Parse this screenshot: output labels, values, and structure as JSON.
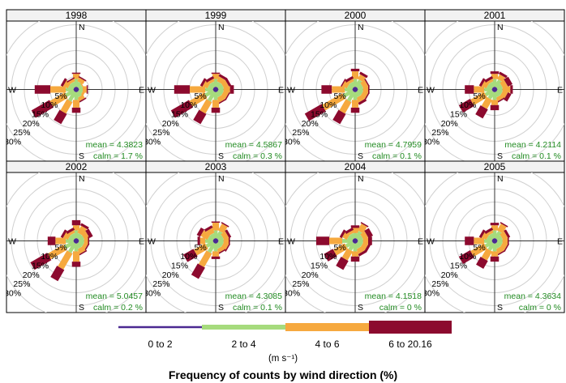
{
  "chart_data": {
    "type": "windrose",
    "title": "Frequency of counts by wind direction (%)",
    "units_label": "(m s⁻¹)",
    "directions_deg": [
      0,
      30,
      60,
      90,
      120,
      150,
      180,
      210,
      240,
      270,
      300,
      330
    ],
    "compass_labels": {
      "n": "N",
      "e": "E",
      "s": "S",
      "w": "W"
    },
    "ring_labels": [
      "5%",
      "10%",
      "15%",
      "20%",
      "25%",
      "30%"
    ],
    "ring_values": [
      5,
      10,
      15,
      20,
      25,
      30
    ],
    "bins": [
      {
        "label": "0 to 2",
        "color": "#4B2991"
      },
      {
        "label": "2 to 4",
        "color": "#A6DB7D"
      },
      {
        "label": "4 to 6",
        "color": "#F6A93F"
      },
      {
        "label": "6 to 20.16",
        "color": "#8C0A2E"
      }
    ],
    "panels": [
      {
        "year": "1998",
        "mean_label": "mean = 4.3823",
        "calm_label": "calm = 1.7 %",
        "cum": [
          [
            1,
            4,
            6,
            6.5
          ],
          [
            1,
            3,
            4.5,
            5
          ],
          [
            1,
            2.5,
            3,
            3
          ],
          [
            1,
            2.5,
            4,
            4.5
          ],
          [
            1,
            2.5,
            3.5,
            3.5
          ],
          [
            1,
            3,
            4.5,
            5
          ],
          [
            1,
            4,
            7,
            9
          ],
          [
            1,
            5,
            10,
            14.5
          ],
          [
            1,
            4.5,
            11,
            19
          ],
          [
            1,
            4,
            10,
            16
          ],
          [
            1,
            3,
            5,
            6
          ],
          [
            1,
            3,
            4,
            4.5
          ]
        ]
      },
      {
        "year": "1999",
        "mean_label": "mean = 4.5867",
        "calm_label": "calm = 0.3 %",
        "cum": [
          [
            1,
            4,
            6,
            6.5
          ],
          [
            1,
            3,
            5,
            6
          ],
          [
            1,
            3,
            5,
            6
          ],
          [
            1,
            3,
            5.5,
            7
          ],
          [
            1,
            3,
            5,
            5.5
          ],
          [
            1,
            3,
            5,
            5.5
          ],
          [
            1,
            4,
            7,
            9
          ],
          [
            1,
            5,
            10,
            14.5
          ],
          [
            1,
            4.5,
            11,
            19
          ],
          [
            1,
            4,
            10,
            16
          ],
          [
            1,
            3,
            5,
            6
          ],
          [
            1,
            3,
            4,
            5
          ]
        ]
      },
      {
        "year": "2000",
        "mean_label": "mean = 4.7959",
        "calm_label": "calm = 0.1 %",
        "cum": [
          [
            1,
            4,
            7,
            8
          ],
          [
            1,
            4,
            6,
            7
          ],
          [
            1,
            3,
            5,
            5.5
          ],
          [
            1,
            3,
            5,
            5.5
          ],
          [
            1,
            3,
            5,
            5.5
          ],
          [
            1,
            3,
            5,
            6
          ],
          [
            1,
            4,
            7,
            9
          ],
          [
            1,
            5,
            10,
            14.5
          ],
          [
            1,
            5,
            14,
            21.5
          ],
          [
            1,
            4,
            9,
            13
          ],
          [
            1,
            3,
            5,
            5.5
          ],
          [
            1,
            3,
            4,
            5
          ]
        ]
      },
      {
        "year": "2001",
        "mean_label": "mean = 4.2114",
        "calm_label": "calm = 0.1 %",
        "cum": [
          [
            1,
            4,
            6,
            7
          ],
          [
            1,
            4,
            6,
            7
          ],
          [
            1,
            3,
            5,
            7
          ],
          [
            1,
            3,
            6,
            7
          ],
          [
            1,
            3,
            5,
            6.5
          ],
          [
            1,
            3,
            4.5,
            5
          ],
          [
            1,
            4,
            6,
            8
          ],
          [
            1,
            4,
            8,
            12
          ],
          [
            1,
            4,
            10,
            15
          ],
          [
            1,
            4,
            8,
            11.5
          ],
          [
            1,
            3,
            5,
            6
          ],
          [
            1,
            3,
            4,
            5
          ]
        ]
      },
      {
        "year": "2002",
        "mean_label": "mean = 5.0457",
        "calm_label": "calm = 0.2 %",
        "cum": [
          [
            1,
            4,
            6,
            8
          ],
          [
            1,
            3,
            6,
            7
          ],
          [
            1,
            3,
            5,
            6.5
          ],
          [
            1,
            3,
            4.5,
            5
          ],
          [
            1,
            3,
            4.5,
            5
          ],
          [
            1,
            3,
            5,
            5.5
          ],
          [
            1,
            4,
            8,
            10
          ],
          [
            1,
            5,
            12,
            17
          ],
          [
            1,
            5,
            12,
            19.5
          ],
          [
            1,
            4,
            8,
            11
          ],
          [
            1,
            3,
            5,
            6
          ],
          [
            1,
            3,
            4,
            5
          ]
        ]
      },
      {
        "year": "2003",
        "mean_label": "mean = 4.3085",
        "calm_label": "calm = 0.1 %",
        "cum": [
          [
            1,
            4,
            7,
            7.5
          ],
          [
            1,
            4,
            7,
            7.5
          ],
          [
            1,
            3,
            5,
            6
          ],
          [
            1,
            3,
            5,
            5.5
          ],
          [
            1,
            3,
            5,
            5.5
          ],
          [
            1,
            3,
            4.5,
            5
          ],
          [
            1,
            4,
            6,
            7
          ],
          [
            1,
            5,
            11,
            16
          ],
          [
            1,
            4,
            9,
            13.5
          ],
          [
            1,
            4,
            6,
            7
          ],
          [
            1,
            3,
            6,
            7.5
          ],
          [
            1,
            3,
            5,
            6
          ]
        ]
      },
      {
        "year": "2004",
        "mean_label": "mean = 4.1518",
        "calm_label": "calm = 0 %",
        "cum": [
          [
            1,
            3,
            5,
            6
          ],
          [
            1,
            4,
            7,
            7.5
          ],
          [
            1,
            3,
            5,
            7
          ],
          [
            1,
            3,
            5,
            6.5
          ],
          [
            1,
            3,
            5,
            6
          ],
          [
            1,
            3,
            5,
            6
          ],
          [
            1,
            4,
            6,
            8
          ],
          [
            1,
            4,
            8,
            12
          ],
          [
            1,
            4,
            9,
            13
          ],
          [
            1,
            5,
            10,
            15
          ],
          [
            1,
            3,
            5,
            6
          ],
          [
            1,
            3,
            4,
            5
          ]
        ]
      },
      {
        "year": "2005",
        "mean_label": "mean = 4.3634",
        "calm_label": "calm = 0 %",
        "cum": [
          [
            1,
            4,
            6,
            7
          ],
          [
            1,
            4,
            7,
            7.5
          ],
          [
            1,
            3,
            5,
            6
          ],
          [
            1,
            3,
            5,
            5.5
          ],
          [
            1,
            3,
            5,
            5.5
          ],
          [
            1,
            3,
            5,
            5.5
          ],
          [
            1,
            4,
            6,
            8
          ],
          [
            1,
            4,
            8,
            11.5
          ],
          [
            1,
            4,
            10,
            15
          ],
          [
            1,
            4,
            8,
            11.5
          ],
          [
            1,
            3,
            5,
            6
          ],
          [
            1,
            3,
            4,
            5
          ]
        ]
      }
    ]
  }
}
